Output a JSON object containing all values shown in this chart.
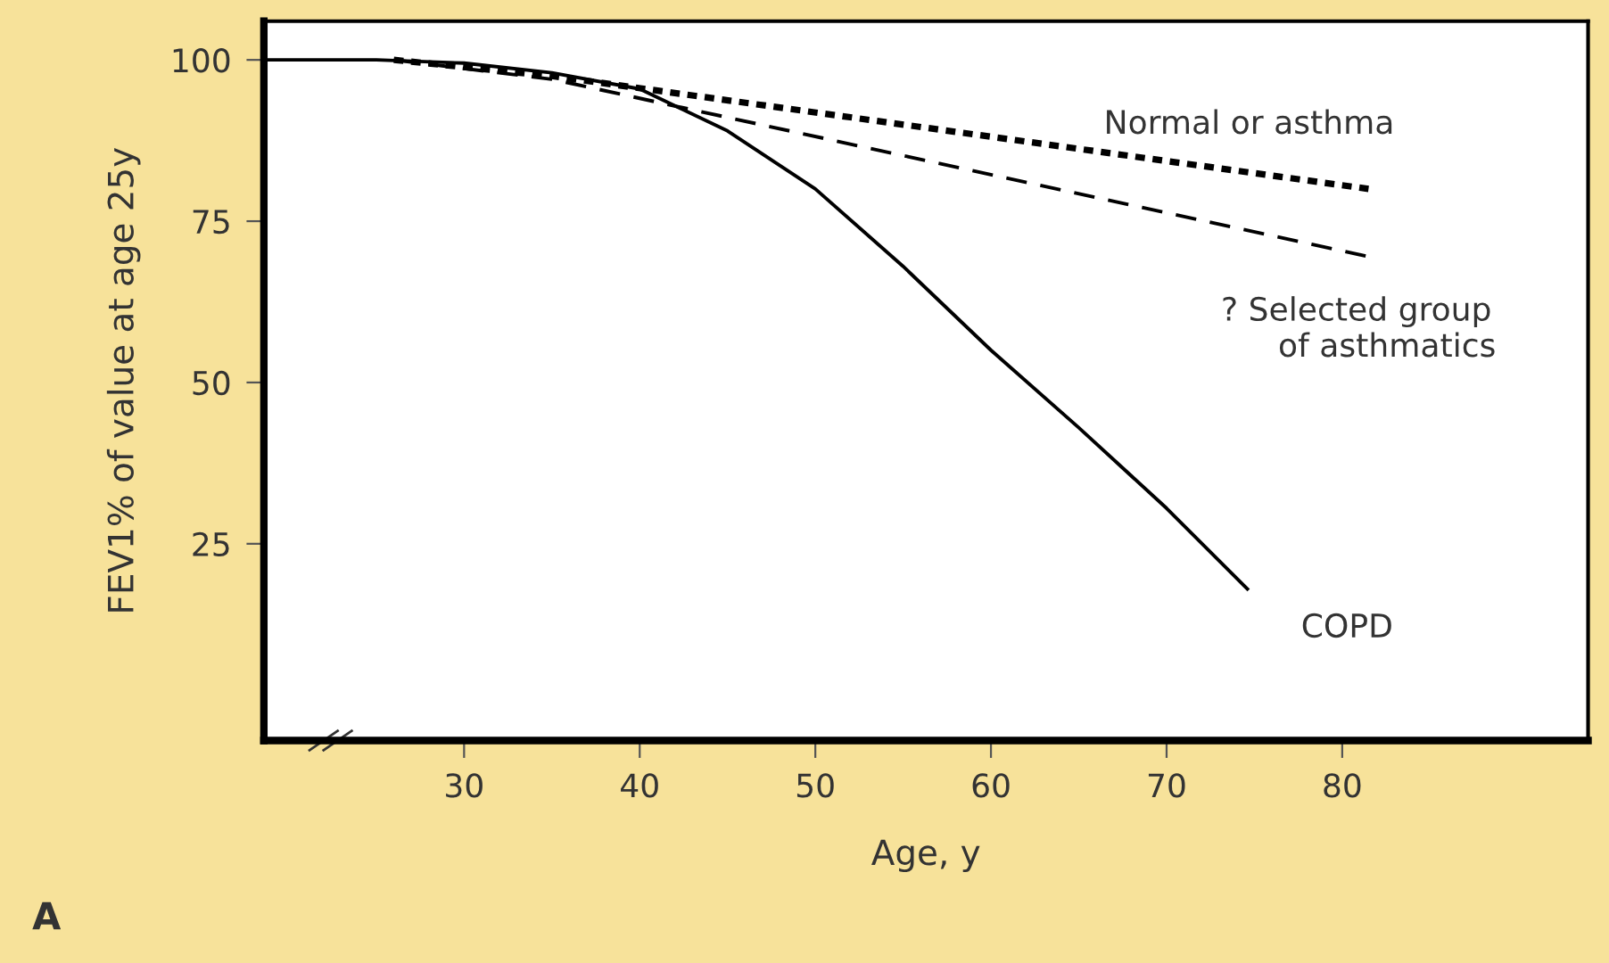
{
  "chart_data": {
    "type": "line",
    "xlabel": "Age, y",
    "ylabel": "FEV1% of value at age 25y",
    "xlim": [
      18.6,
      94
    ],
    "ylim": [
      -5.5,
      106
    ],
    "xticks": [
      30,
      40,
      50,
      60,
      70,
      80
    ],
    "yticks": [
      25,
      50,
      75,
      100
    ],
    "grid": false,
    "legend": false,
    "marker": "none",
    "series": [
      {
        "color": "#000000",
        "line_style": "dotted",
        "x": [
          26,
          35,
          81.5
        ],
        "values": [
          100,
          97.5,
          80
        ]
      },
      {
        "color": "#000000",
        "line_style": "dashed",
        "x": [
          26,
          35,
          81.5
        ],
        "values": [
          100,
          97,
          69.5
        ]
      },
      {
        "color": "#000000",
        "line_style": "solid",
        "x": [
          18.6,
          25,
          30,
          35,
          40,
          45,
          50,
          55,
          60,
          65,
          70,
          74.6
        ],
        "values": [
          100,
          100,
          99.5,
          98,
          95.5,
          89,
          80,
          68,
          55,
          43,
          30.5,
          18
        ]
      }
    ],
    "annotations": [
      "Normal or asthma",
      "? Selected group\n      of asthmatics",
      "COPD",
      "A"
    ]
  }
}
